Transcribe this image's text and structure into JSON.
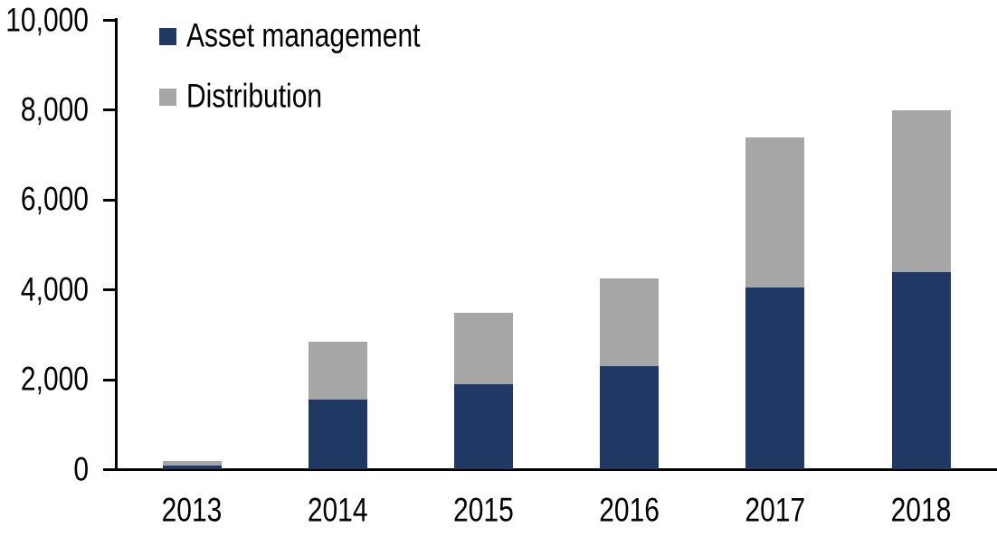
{
  "chart_data": {
    "type": "bar",
    "stacked": true,
    "title": "",
    "xlabel": "",
    "ylabel": "",
    "categories": [
      "2013",
      "2014",
      "2015",
      "2016",
      "2017",
      "2018"
    ],
    "series": [
      {
        "name": "Asset management",
        "color": "#1F3864",
        "values": [
          100,
          1550,
          1900,
          2300,
          4050,
          4400
        ]
      },
      {
        "name": "Distribution",
        "color": "#A6A6A6",
        "values": [
          100,
          1300,
          1600,
          1950,
          3350,
          3600
        ]
      }
    ],
    "totals": [
      200,
      2850,
      3500,
      4250,
      7400,
      8000
    ],
    "ylim": [
      0,
      10000
    ],
    "yticks": [
      0,
      2000,
      4000,
      6000,
      8000,
      10000
    ],
    "ytick_labels": [
      "0",
      "2,000",
      "4,000",
      "6,000",
      "8,000",
      "10,000"
    ],
    "grid": false,
    "legend_position": "top-left-inside",
    "axis_color": "#000000",
    "background_color": "#FFFFFF"
  }
}
